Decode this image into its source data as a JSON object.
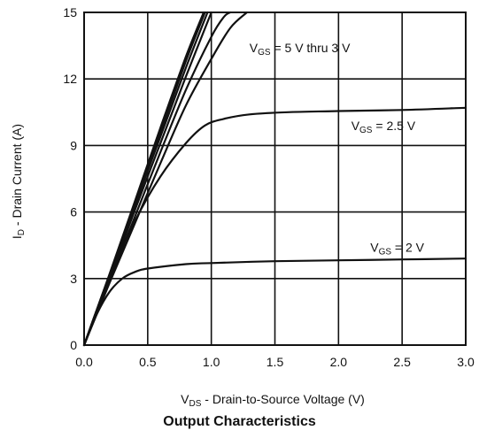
{
  "chart_data": {
    "type": "line",
    "caption": "Output Characteristics",
    "xlabel": {
      "symbol": "V",
      "sub": "DS",
      "text": " - Drain-to-Source Voltage (V)"
    },
    "ylabel": {
      "symbol": "I",
      "sub": "D",
      "text": " - Drain Current (A)"
    },
    "xlim": [
      0,
      3.0
    ],
    "ylim": [
      0,
      15
    ],
    "x_ticks": [
      "0.0",
      "0.5",
      "1.0",
      "1.5",
      "2.0",
      "2.5",
      "3.0"
    ],
    "y_ticks": [
      "0",
      "3",
      "6",
      "9",
      "12",
      "15"
    ],
    "grid": true,
    "annotations": [
      {
        "prefix": "V",
        "sub": "GS",
        "text": " = 5 V thru 3 V",
        "x": 1.3,
        "y": 13.2
      },
      {
        "prefix": "V",
        "sub": "GS",
        "text": " = 2.5 V",
        "x": 2.1,
        "y": 9.7
      },
      {
        "prefix": "V",
        "sub": "GS",
        "text": " = 2 V",
        "x": 2.25,
        "y": 4.2
      }
    ],
    "series": [
      {
        "points": [
          [
            0,
            0
          ],
          [
            0.2,
            3.2
          ],
          [
            0.4,
            6.5
          ],
          [
            0.6,
            9.8
          ],
          [
            0.8,
            13.0
          ],
          [
            0.94,
            15.0
          ]
        ]
      },
      {
        "points": [
          [
            0,
            0
          ],
          [
            0.2,
            3.15
          ],
          [
            0.4,
            6.4
          ],
          [
            0.6,
            9.6
          ],
          [
            0.8,
            12.8
          ],
          [
            0.95,
            15.0
          ]
        ]
      },
      {
        "points": [
          [
            0,
            0
          ],
          [
            0.2,
            3.1
          ],
          [
            0.4,
            6.3
          ],
          [
            0.6,
            9.4
          ],
          [
            0.8,
            12.5
          ],
          [
            0.97,
            15.0
          ]
        ]
      },
      {
        "points": [
          [
            0,
            0
          ],
          [
            0.2,
            3.0
          ],
          [
            0.4,
            6.1
          ],
          [
            0.6,
            9.1
          ],
          [
            0.8,
            12.1
          ],
          [
            1.0,
            15.0
          ]
        ]
      },
      {
        "points": [
          [
            0,
            0
          ],
          [
            0.2,
            2.9
          ],
          [
            0.4,
            5.8
          ],
          [
            0.6,
            8.7
          ],
          [
            0.8,
            11.5
          ],
          [
            1.0,
            13.9
          ],
          [
            1.1,
            14.8
          ],
          [
            1.15,
            15.0
          ]
        ]
      },
      {
        "points": [
          [
            0,
            0
          ],
          [
            0.2,
            2.8
          ],
          [
            0.4,
            5.5
          ],
          [
            0.6,
            8.2
          ],
          [
            0.8,
            10.8
          ],
          [
            1.0,
            12.9
          ],
          [
            1.15,
            14.3
          ],
          [
            1.28,
            15.0
          ]
        ]
      },
      {
        "points": [
          [
            0,
            0
          ],
          [
            0.1,
            1.6
          ],
          [
            0.2,
            3.1
          ],
          [
            0.4,
            5.6
          ],
          [
            0.6,
            7.6
          ],
          [
            0.8,
            9.1
          ],
          [
            0.95,
            9.9
          ],
          [
            1.1,
            10.2
          ],
          [
            1.3,
            10.4
          ],
          [
            1.6,
            10.5
          ],
          [
            2.0,
            10.55
          ],
          [
            2.5,
            10.6
          ],
          [
            3.0,
            10.7
          ]
        ]
      },
      {
        "points": [
          [
            0,
            0
          ],
          [
            0.1,
            1.4
          ],
          [
            0.2,
            2.4
          ],
          [
            0.3,
            3.0
          ],
          [
            0.4,
            3.3
          ],
          [
            0.5,
            3.45
          ],
          [
            0.8,
            3.65
          ],
          [
            1.0,
            3.7
          ],
          [
            1.5,
            3.78
          ],
          [
            2.0,
            3.82
          ],
          [
            2.5,
            3.86
          ],
          [
            3.0,
            3.9
          ]
        ]
      }
    ]
  }
}
